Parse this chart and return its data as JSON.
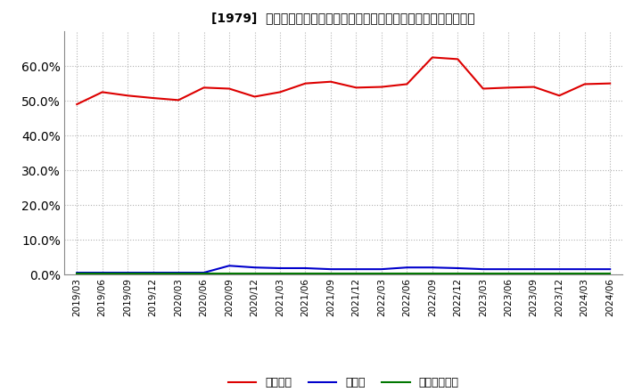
{
  "title": "[1979]  自己資本、のれん、繰延税金資産の総資産に対する比率の推移",
  "x_labels": [
    "2019/03",
    "2019/06",
    "2019/09",
    "2019/12",
    "2020/03",
    "2020/06",
    "2020/09",
    "2020/12",
    "2021/03",
    "2021/06",
    "2021/09",
    "2021/12",
    "2022/03",
    "2022/06",
    "2022/09",
    "2022/12",
    "2023/03",
    "2023/06",
    "2023/09",
    "2023/12",
    "2024/03",
    "2024/06"
  ],
  "jikoshihon": [
    49.0,
    52.5,
    51.5,
    50.8,
    50.2,
    53.8,
    53.5,
    51.2,
    52.5,
    55.0,
    55.5,
    53.8,
    54.0,
    54.8,
    62.5,
    62.0,
    53.5,
    53.8,
    54.0,
    51.5,
    54.8,
    55.0
  ],
  "noren": [
    0.5,
    0.5,
    0.5,
    0.5,
    0.5,
    0.5,
    2.5,
    2.0,
    1.8,
    1.8,
    1.5,
    1.5,
    1.5,
    2.0,
    2.0,
    1.8,
    1.5,
    1.5,
    1.5,
    1.5,
    1.5,
    1.5
  ],
  "kurinobe": [
    0.3,
    0.3,
    0.3,
    0.3,
    0.3,
    0.3,
    0.3,
    0.3,
    0.3,
    0.3,
    0.3,
    0.3,
    0.3,
    0.3,
    0.3,
    0.3,
    0.3,
    0.3,
    0.3,
    0.3,
    0.3,
    0.3
  ],
  "jikoshihon_color": "#dd0000",
  "noren_color": "#0000cc",
  "kurinobe_color": "#007700",
  "background_color": "#ffffff",
  "grid_color": "#aaaaaa",
  "ylim": [
    0,
    70
  ],
  "yticks": [
    0.0,
    10.0,
    20.0,
    30.0,
    40.0,
    50.0,
    60.0
  ],
  "legend_labels": [
    "自己資本",
    "のれん",
    "繰延税金資産"
  ]
}
